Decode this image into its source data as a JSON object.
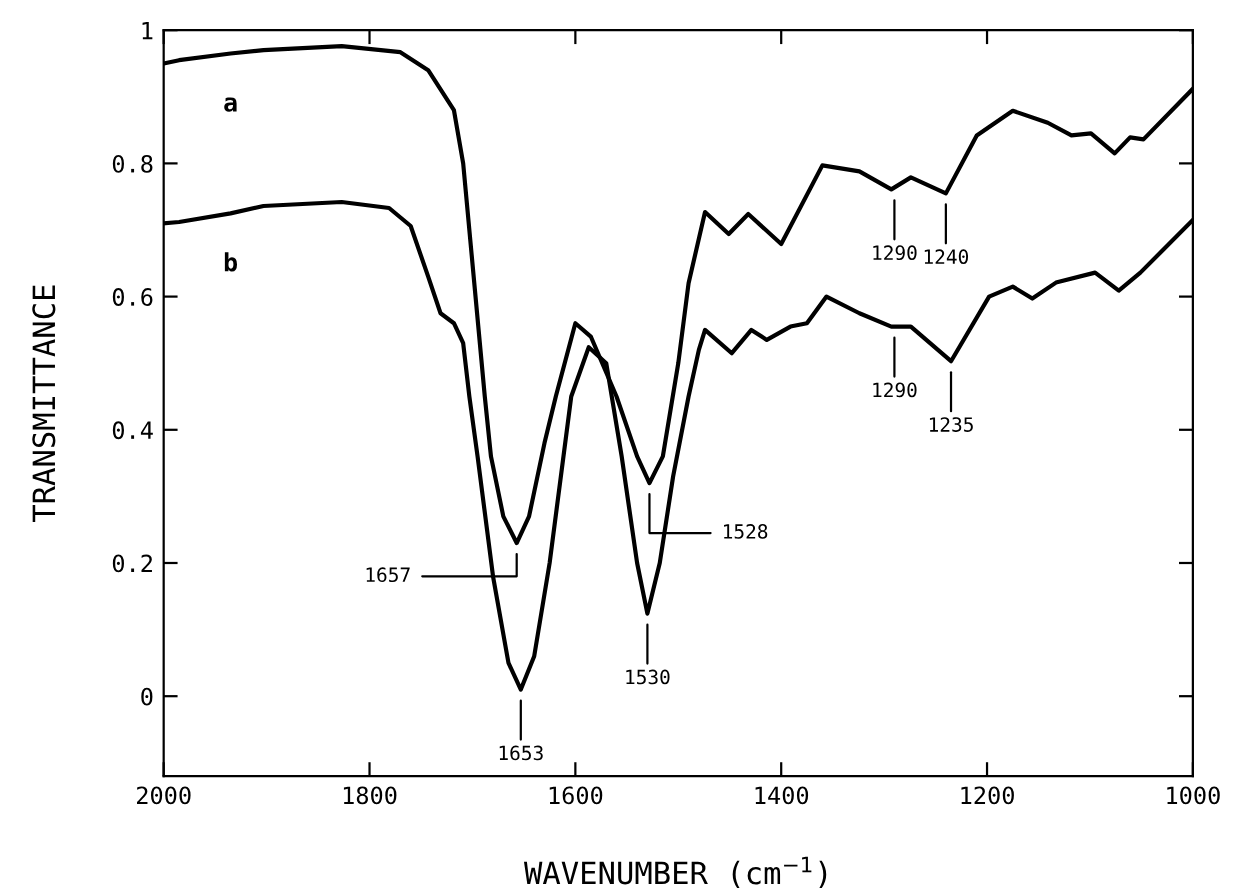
{
  "chart_data": {
    "type": "line",
    "xlabel": "WAVENUMBER (cm$^{−1}$)",
    "ylabel": "TRANSMITTANCE",
    "xlim": [
      2000,
      1000
    ],
    "xticks": [
      2000,
      1800,
      1600,
      1400,
      1200,
      1000
    ],
    "ylim": [
      -0.12,
      1.0
    ],
    "yticks": [
      0,
      0.2,
      0.4,
      0.6,
      0.8,
      1
    ],
    "grid": false,
    "legend": false,
    "marker": "none",
    "line_style": "solid",
    "series": [
      {
        "name": "a",
        "color": "#000000",
        "x": [
          2000,
          1985,
          1935,
          1903,
          1827,
          1770,
          1743,
          1718,
          1709,
          1688,
          1682,
          1670,
          1657,
          1645,
          1630,
          1619,
          1600,
          1585,
          1560,
          1540,
          1528,
          1515,
          1500,
          1490,
          1474,
          1451,
          1432,
          1400,
          1360,
          1324,
          1293,
          1274,
          1240,
          1210,
          1175,
          1141,
          1118,
          1099,
          1076,
          1061,
          1048,
          1000
        ],
        "values": [
          0.95,
          0.955,
          0.965,
          0.97,
          0.976,
          0.967,
          0.94,
          0.88,
          0.8,
          0.45,
          0.36,
          0.27,
          0.23,
          0.27,
          0.38,
          0.45,
          0.56,
          0.54,
          0.45,
          0.36,
          0.32,
          0.36,
          0.5,
          0.62,
          0.727,
          0.694,
          0.724,
          0.679,
          0.797,
          0.788,
          0.761,
          0.779,
          0.755,
          0.842,
          0.879,
          0.861,
          0.842,
          0.845,
          0.815,
          0.839,
          0.836,
          0.912
        ]
      },
      {
        "name": "b",
        "color": "#000000",
        "x": [
          2000,
          1985,
          1935,
          1903,
          1827,
          1781,
          1760,
          1743,
          1731,
          1718,
          1709,
          1703,
          1695,
          1680,
          1665,
          1653,
          1640,
          1625,
          1604,
          1587,
          1570,
          1555,
          1540,
          1530,
          1518,
          1505,
          1490,
          1480,
          1474,
          1448,
          1429,
          1414,
          1391,
          1375,
          1356,
          1324,
          1293,
          1274,
          1235,
          1198,
          1175,
          1156,
          1133,
          1095,
          1072,
          1051,
          1000
        ],
        "values": [
          0.71,
          0.712,
          0.725,
          0.736,
          0.742,
          0.733,
          0.706,
          0.63,
          0.575,
          0.56,
          0.53,
          0.45,
          0.36,
          0.18,
          0.05,
          0.01,
          0.06,
          0.2,
          0.45,
          0.524,
          0.5,
          0.36,
          0.2,
          0.124,
          0.2,
          0.33,
          0.45,
          0.52,
          0.55,
          0.515,
          0.55,
          0.535,
          0.555,
          0.56,
          0.6,
          0.575,
          0.555,
          0.555,
          0.503,
          0.6,
          0.615,
          0.597,
          0.621,
          0.636,
          0.609,
          0.636,
          0.715
        ]
      }
    ],
    "annotations": [
      {
        "text": "1657",
        "x": 1657,
        "y": 0.23
      },
      {
        "text": "1653",
        "x": 1653,
        "y": 0.01
      },
      {
        "text": "1530",
        "x": 1530,
        "y": 0.124
      },
      {
        "text": "1528",
        "x": 1528,
        "y": 0.32
      },
      {
        "text": "1290",
        "x": 1290,
        "y": 0.761
      },
      {
        "text": "1240",
        "x": 1240,
        "y": 0.755
      },
      {
        "text": "1290",
        "x": 1290,
        "y": 0.555
      },
      {
        "text": "1235",
        "x": 1235,
        "y": 0.503
      }
    ]
  }
}
